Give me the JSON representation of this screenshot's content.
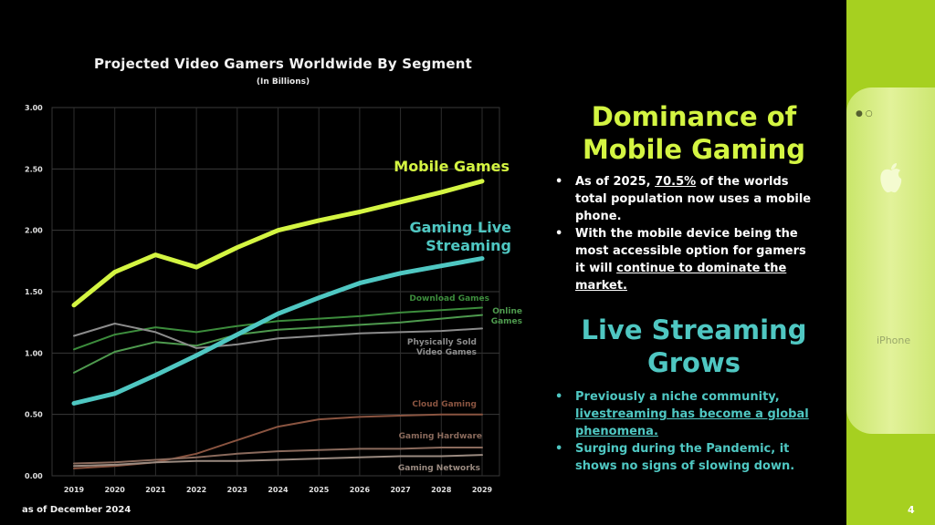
{
  "slide": {
    "page_number": "4",
    "footnote": "as of December 2024"
  },
  "right_panel": {
    "section1": {
      "heading_line1": "Dominance of",
      "heading_line2": "Mobile Gaming",
      "bullet1": {
        "pre": "As of 2025, ",
        "highlight": "70.5%",
        "post": " of the worlds total population now uses a mobile phone."
      },
      "bullet2": {
        "pre": "With the mobile device being the most accessible option for gamers it will ",
        "highlight": "continue to dominate the market."
      }
    },
    "section2": {
      "heading_line1": "Live Streaming",
      "heading_line2": "Grows",
      "bullet1": {
        "pre": "Previously a niche community, ",
        "highlight": "livestreaming has become a global phenomena."
      },
      "bullet2": {
        "text": "Surging during the Pandemic, it shows no signs of slowing down."
      }
    }
  },
  "phone": {
    "label": "iPhone",
    "icon": "apple-logo-icon"
  },
  "chart_data": {
    "type": "line",
    "title": "Projected Video Gamers Worldwide By Segment",
    "subtitle": "(In Billions)",
    "x": [
      "2019",
      "2020",
      "2021",
      "2022",
      "2023",
      "2024",
      "2025",
      "2026",
      "2027",
      "2028",
      "2029"
    ],
    "ylim": [
      0,
      3
    ],
    "yticks": [
      "0.00",
      "0.50",
      "1.00",
      "1.50",
      "2.00",
      "2.50",
      "3.00"
    ],
    "grid": true,
    "series": [
      {
        "name": "Mobile Games",
        "color": "#d4f542",
        "width": 5,
        "label_lines": [
          "Mobile Games"
        ],
        "label_size": 16,
        "values": [
          1.39,
          1.66,
          1.8,
          1.7,
          1.86,
          2.0,
          2.08,
          2.15,
          2.23,
          2.31,
          2.4
        ]
      },
      {
        "name": "Gaming Live Streaming",
        "color": "#4fc7c2",
        "width": 5,
        "label_lines": [
          "Gaming Live",
          "Streaming"
        ],
        "label_size": 16,
        "values": [
          0.59,
          0.67,
          0.82,
          0.98,
          1.15,
          1.32,
          1.45,
          1.57,
          1.65,
          1.71,
          1.77
        ]
      },
      {
        "name": "Download Games",
        "color": "#3c8c3c",
        "width": 2,
        "label_lines": [
          "Download Games"
        ],
        "label_size": 9,
        "values": [
          1.03,
          1.15,
          1.21,
          1.17,
          1.22,
          1.26,
          1.28,
          1.3,
          1.33,
          1.35,
          1.37
        ]
      },
      {
        "name": "Online Games",
        "color": "#4e9a4e",
        "width": 2,
        "label_lines": [
          "Online",
          "Games"
        ],
        "label_size": 9,
        "values": [
          0.84,
          1.01,
          1.09,
          1.06,
          1.15,
          1.19,
          1.21,
          1.23,
          1.25,
          1.28,
          1.31
        ]
      },
      {
        "name": "Physically Sold Video Games",
        "color": "#8c8c8c",
        "width": 2,
        "label_lines": [
          "Physically Sold",
          "Video Games"
        ],
        "label_size": 9,
        "values": [
          1.14,
          1.24,
          1.17,
          1.04,
          1.07,
          1.12,
          1.14,
          1.16,
          1.17,
          1.18,
          1.2
        ]
      },
      {
        "name": "Cloud Gaming",
        "color": "#8a5440",
        "width": 2,
        "label_lines": [
          "Cloud Gaming"
        ],
        "label_size": 9,
        "values": [
          0.06,
          0.08,
          0.11,
          0.18,
          0.29,
          0.4,
          0.46,
          0.48,
          0.49,
          0.5,
          0.5
        ]
      },
      {
        "name": "Gaming Hardware",
        "color": "#8a6a5c",
        "width": 2,
        "label_lines": [
          "Gaming Hardware"
        ],
        "label_size": 9,
        "values": [
          0.1,
          0.11,
          0.13,
          0.15,
          0.18,
          0.2,
          0.21,
          0.22,
          0.22,
          0.23,
          0.23
        ]
      },
      {
        "name": "Gaming Networks",
        "color": "#9a8a80",
        "width": 2,
        "label_lines": [
          "Gaming Networks"
        ],
        "label_size": 9,
        "values": [
          0.08,
          0.09,
          0.11,
          0.12,
          0.12,
          0.13,
          0.14,
          0.15,
          0.16,
          0.16,
          0.17
        ]
      }
    ]
  }
}
